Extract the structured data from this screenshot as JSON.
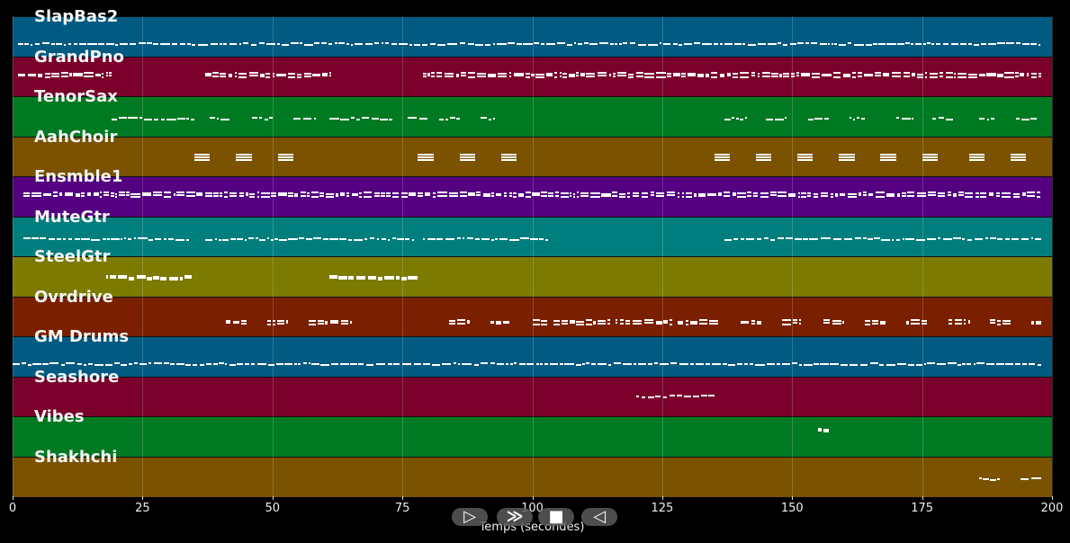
{
  "chart_data": {
    "type": "piano-roll",
    "xlabel": "Temps (secondes)",
    "xlim": [
      0,
      200
    ],
    "xticks": [
      0,
      25,
      50,
      75,
      100,
      125,
      150,
      175,
      200
    ],
    "grid": true,
    "tracks": [
      {
        "name": "SlapBas2",
        "color": "#005a82",
        "segments": [
          [
            1,
            198
          ]
        ],
        "dense": "low-line"
      },
      {
        "name": "GrandPno",
        "color": "#7a002b",
        "segments": [
          [
            1,
            19
          ],
          [
            37,
            61
          ],
          [
            79,
            198
          ]
        ],
        "dense": "upper"
      },
      {
        "name": "TenorSax",
        "color": "#007a22",
        "segments": [
          [
            19,
            35
          ],
          [
            38,
            42
          ],
          [
            46,
            50
          ],
          [
            54,
            58
          ],
          [
            61,
            73
          ],
          [
            76,
            80
          ],
          [
            82,
            86
          ],
          [
            90,
            93
          ],
          [
            137,
            141
          ],
          [
            145,
            149
          ],
          [
            153,
            157
          ],
          [
            161,
            164
          ],
          [
            170,
            173
          ],
          [
            177,
            181
          ],
          [
            186,
            189
          ],
          [
            193,
            197
          ]
        ],
        "dense": "mid"
      },
      {
        "name": "AahChoir",
        "color": "#7a5200",
        "segments": [
          [
            35,
            38
          ],
          [
            43,
            46
          ],
          [
            51,
            54
          ],
          [
            78,
            81
          ],
          [
            86,
            89
          ],
          [
            94,
            97
          ],
          [
            135,
            138
          ],
          [
            143,
            146
          ],
          [
            151,
            154
          ],
          [
            159,
            162
          ],
          [
            167,
            170
          ],
          [
            175,
            178
          ],
          [
            184,
            187
          ],
          [
            192,
            195
          ]
        ],
        "dense": "chord"
      },
      {
        "name": "Ensmble1",
        "color": "#540080",
        "segments": [
          [
            2,
            19
          ],
          [
            19,
            198
          ]
        ],
        "dense": "upper"
      },
      {
        "name": "MuteGtr",
        "color": "#007e7e",
        "segments": [
          [
            2,
            34
          ],
          [
            37,
            77
          ],
          [
            79,
            103
          ],
          [
            137,
            198
          ]
        ],
        "dense": "mid"
      },
      {
        "name": "SteelGtr",
        "color": "#7c7a00",
        "segments": [
          [
            18,
            35
          ],
          [
            61,
            78
          ]
        ],
        "dense": "mid"
      },
      {
        "name": "Ovrdrive",
        "color": "#7a2000",
        "segments": [
          [
            41,
            45
          ],
          [
            49,
            53
          ],
          [
            57,
            65
          ],
          [
            84,
            88
          ],
          [
            92,
            96
          ],
          [
            100,
            103
          ],
          [
            104,
            115
          ],
          [
            116,
            127
          ],
          [
            128,
            136
          ],
          [
            140,
            144
          ],
          [
            148,
            152
          ],
          [
            156,
            160
          ],
          [
            164,
            168
          ],
          [
            172,
            176
          ],
          [
            180,
            184
          ],
          [
            188,
            192
          ],
          [
            196,
            198
          ]
        ],
        "dense": "low"
      },
      {
        "name": "GM Drums",
        "color": "#005a82",
        "segments": [
          [
            0,
            198
          ]
        ],
        "dense": "low-line"
      },
      {
        "name": "Seashore",
        "color": "#7a002b",
        "segments": [
          [
            120,
            135
          ]
        ],
        "dense": "mid"
      },
      {
        "name": "Vibes",
        "color": "#007a22",
        "segments": [
          [
            155,
            157
          ]
        ],
        "dense": "single"
      },
      {
        "name": "Shakhchi",
        "color": "#7a5200",
        "segments": [
          [
            186,
            190
          ],
          [
            194,
            198
          ]
        ],
        "dense": "mid"
      }
    ]
  },
  "player": {
    "play_label": "▷",
    "forward_label": "≫",
    "stop_label": "■",
    "back_label": "◁"
  }
}
